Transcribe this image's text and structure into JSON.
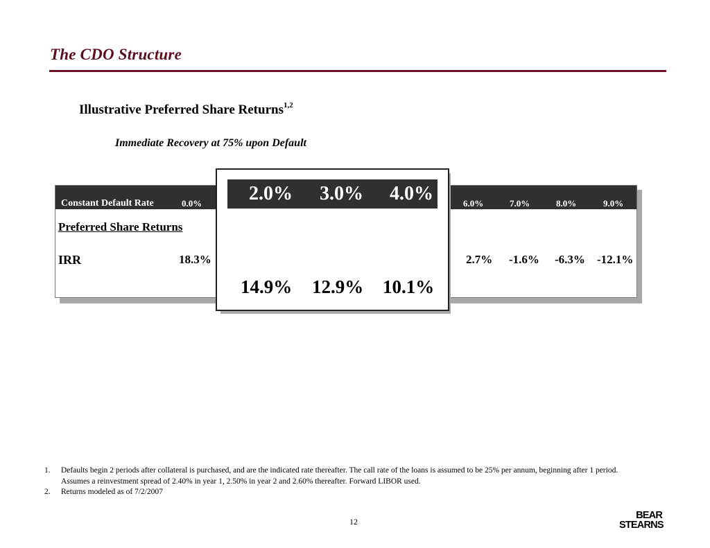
{
  "page": {
    "title": "The CDO Structure",
    "subtitle": "Illustrative Preferred Share Returns",
    "subtitle_superscript": "1,2",
    "scenario": "Immediate Recovery at 75% upon Default"
  },
  "table": {
    "header_label": "Constant Default Rate",
    "columns": [
      "0.0%",
      "2.0%",
      "3.0%",
      "4.0%",
      "6.0%",
      "7.0%",
      "8.0%",
      "9.0%"
    ],
    "section_label": "Preferred Share Returns",
    "row_label": "IRR",
    "irr_values": [
      "18.3%",
      "14.9%",
      "12.9%",
      "10.1%",
      "2.7%",
      "-1.6%",
      "-6.3%",
      "-12.1%"
    ]
  },
  "footnotes": [
    {
      "num": "1.",
      "text": "Defaults begin 2 periods after collateral is purchased, and are the indicated rate thereafter.  The call rate of the loans is assumed to be 25% per annum, beginning after 1 period.  Assumes a reinvestment spread of 2.40% in year 1, 2.50% in year 2 and 2.60% thereafter.  Forward LIBOR used."
    },
    {
      "num": "2.",
      "text": "Returns modeled as of 7/2/2007"
    }
  ],
  "page_number": "12",
  "logo": {
    "line1": "BEAR",
    "line2": "STEARNS"
  },
  "colors": {
    "accent": "#5a0f1f",
    "header_bg": "#303030"
  }
}
